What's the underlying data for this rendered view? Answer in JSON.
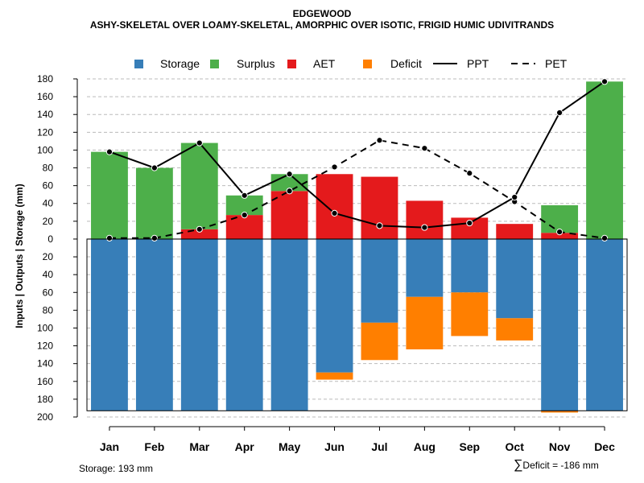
{
  "title": "EDGEWOOD",
  "subtitle": "ASHY-SKELETAL OVER LOAMY-SKELETAL, AMORPHIC OVER ISOTIC, FRIGID HUMIC UDIVITRANDS",
  "footer": {
    "storage": "Storage: 193 mm",
    "deficit_symbol": "∑",
    "deficit_text": "Deficit = -186 mm"
  },
  "colors": {
    "storage": "#377EB8",
    "surplus": "#4DAF4A",
    "aet": "#E41A1C",
    "deficit": "#FF7F00",
    "grid": "#bbbbbb",
    "line": "#000000"
  },
  "chart_data": {
    "type": "bar",
    "title": "EDGEWOOD",
    "ylabel": "Inputs | Outputs | Storage    (mm)",
    "xlabel": "",
    "ylim": [
      -200,
      180
    ],
    "yticks": [
      180,
      160,
      140,
      120,
      100,
      80,
      60,
      40,
      20,
      0,
      -20,
      -40,
      -60,
      -80,
      -100,
      -120,
      -140,
      -160,
      -180,
      -200
    ],
    "ytick_labels": [
      "180",
      "160",
      "140",
      "120",
      "100",
      "80",
      "60",
      "40",
      "20",
      "0",
      "20",
      "40",
      "60",
      "80",
      "100",
      "120",
      "140",
      "160",
      "180",
      "200"
    ],
    "categories": [
      "Jan",
      "Feb",
      "Mar",
      "Apr",
      "May",
      "Jun",
      "Jul",
      "Aug",
      "Sep",
      "Oct",
      "Nov",
      "Dec"
    ],
    "legend": [
      {
        "label": "Storage",
        "kind": "box",
        "key": "storage"
      },
      {
        "label": "Surplus",
        "kind": "box",
        "key": "surplus"
      },
      {
        "label": "AET",
        "kind": "box",
        "key": "aet"
      },
      {
        "label": "Deficit",
        "kind": "box",
        "key": "deficit"
      },
      {
        "label": "PPT",
        "kind": "solid"
      },
      {
        "label": "PET",
        "kind": "dashed"
      }
    ],
    "legend_position": "top",
    "grid": true,
    "aet": [
      0,
      0,
      11,
      27,
      54,
      73,
      70,
      43,
      24,
      17,
      7,
      0
    ],
    "surplus": [
      98,
      80,
      97,
      22,
      19,
      0,
      0,
      0,
      0,
      0,
      31,
      177
    ],
    "storage": [
      193,
      193,
      193,
      193,
      193,
      150,
      94,
      65,
      60,
      89,
      193,
      193
    ],
    "deficit": [
      0,
      0,
      0,
      0,
      0,
      8,
      42,
      59,
      49,
      25,
      2,
      0
    ],
    "ppt": [
      98,
      80,
      108,
      49,
      73,
      29,
      15,
      13,
      18,
      47,
      142,
      177
    ],
    "pet": [
      1,
      1,
      11,
      27,
      54,
      81,
      111,
      102,
      74,
      42,
      8,
      1
    ]
  }
}
